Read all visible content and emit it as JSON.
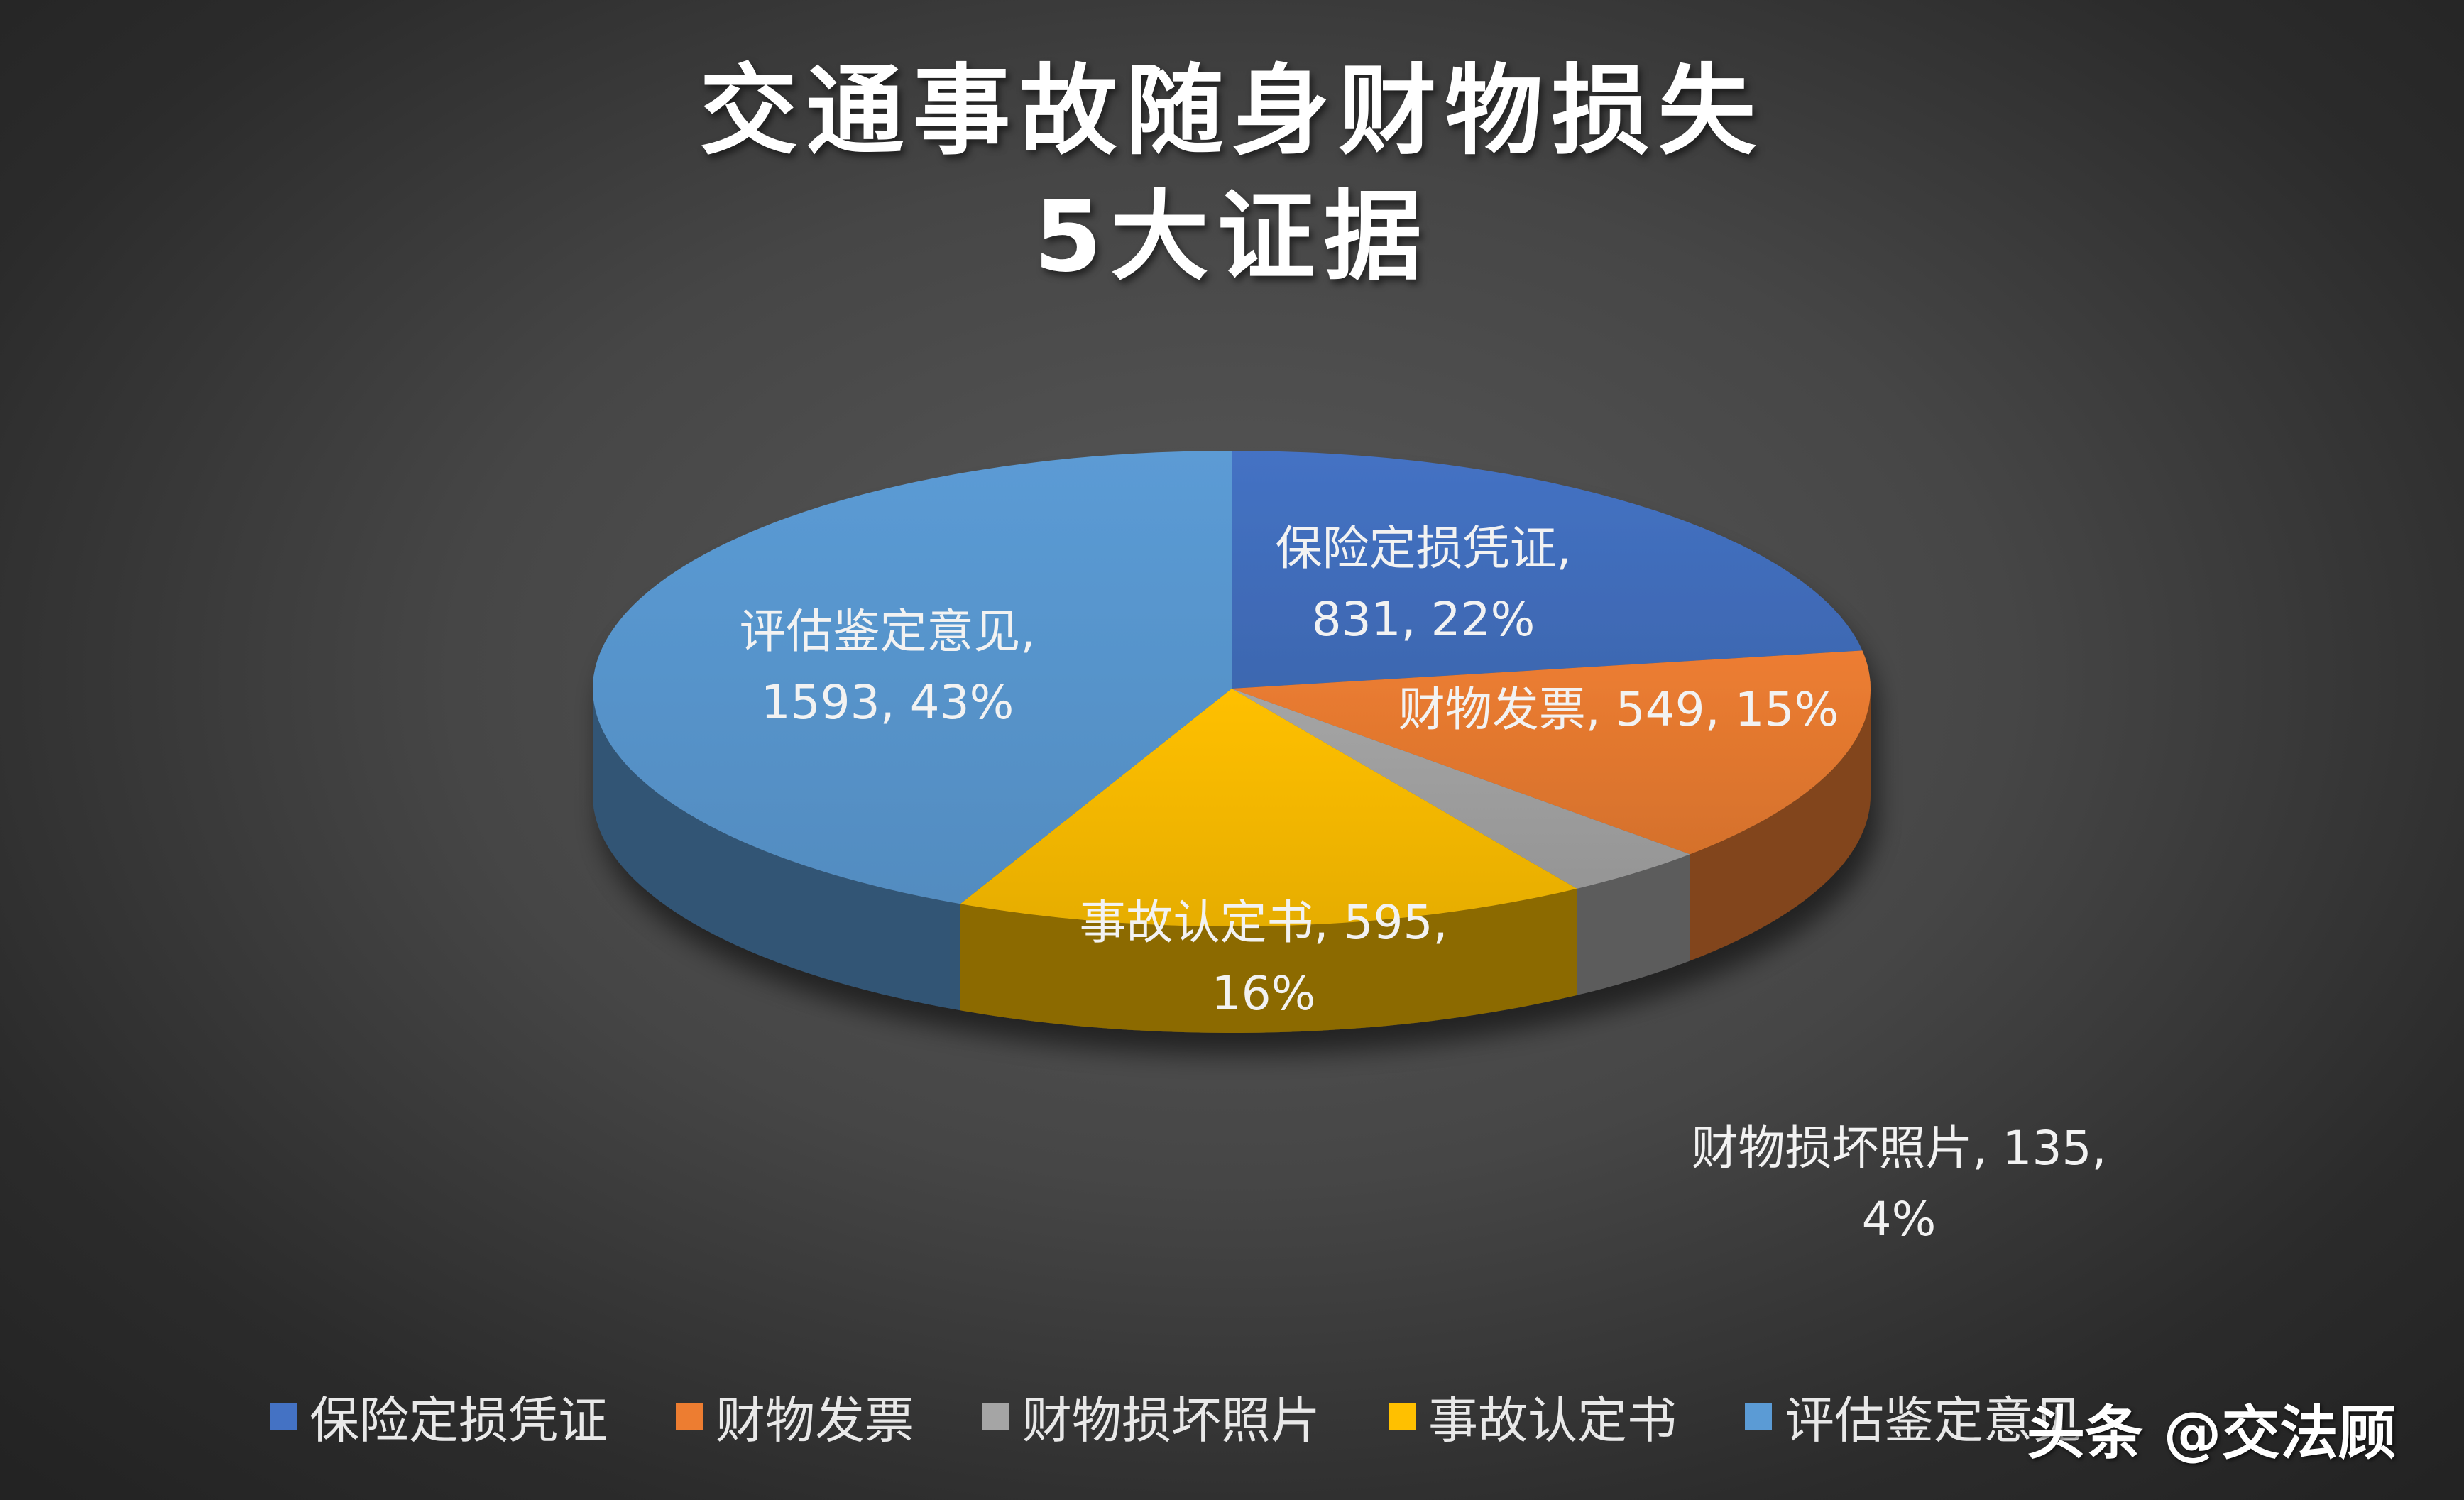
{
  "chart_data": {
    "type": "pie",
    "title_lines": [
      "交通事故随身财物损失",
      "5大证据"
    ],
    "slices": [
      {
        "name": "保险定损凭证",
        "value": 831,
        "percent": "22%",
        "color": "#4472C4",
        "label_line1": "保险定损凭证,",
        "label_line2": "831, 22%"
      },
      {
        "name": "财物发票",
        "value": 549,
        "percent": "15%",
        "color": "#ED7D31",
        "label_line1": "财物发票, 549, 15%",
        "label_line2": ""
      },
      {
        "name": "财物损坏照片",
        "value": 135,
        "percent": "4%",
        "color": "#A5A5A5",
        "label_line1": "财物损坏照片, 135,",
        "label_line2": "4%"
      },
      {
        "name": "事故认定书",
        "value": 595,
        "percent": "16%",
        "color": "#FFC000",
        "label_line1": "事故认定书, 595,",
        "label_line2": "16%"
      },
      {
        "name": "评估鉴定意见",
        "value": 1593,
        "percent": "43%",
        "color": "#5B9BD5",
        "label_line1": "评估鉴定意见,",
        "label_line2": "1593, 43%"
      }
    ],
    "legend_position": "bottom",
    "style": "3d-pie"
  },
  "watermark": "头条 @交法顾"
}
